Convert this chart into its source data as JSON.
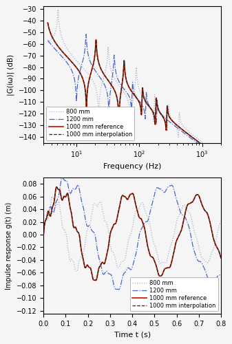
{
  "freq_ylabel": "|G(iω)| (dB)",
  "freq_xlabel": "Frequency (Hz)",
  "impulse_ylabel": "Impulse response g(t) (m)",
  "impulse_xlabel": "Time t (s)",
  "legend_labels": [
    "800 mm",
    "1200 mm",
    "1000 mm reference",
    "1000 mm interpolation"
  ],
  "colors": {
    "800mm": "#aab0cc",
    "1200mm": "#4466cc",
    "ref": "#cc2200",
    "interp": "#222222"
  },
  "freq_ylim": [
    -145,
    -28
  ],
  "freq_xlim": [
    3,
    2000
  ],
  "impulse_ylim": [
    -0.125,
    0.09
  ],
  "impulse_xlim": [
    0,
    0.8
  ],
  "background_color": "#f5f5f5"
}
